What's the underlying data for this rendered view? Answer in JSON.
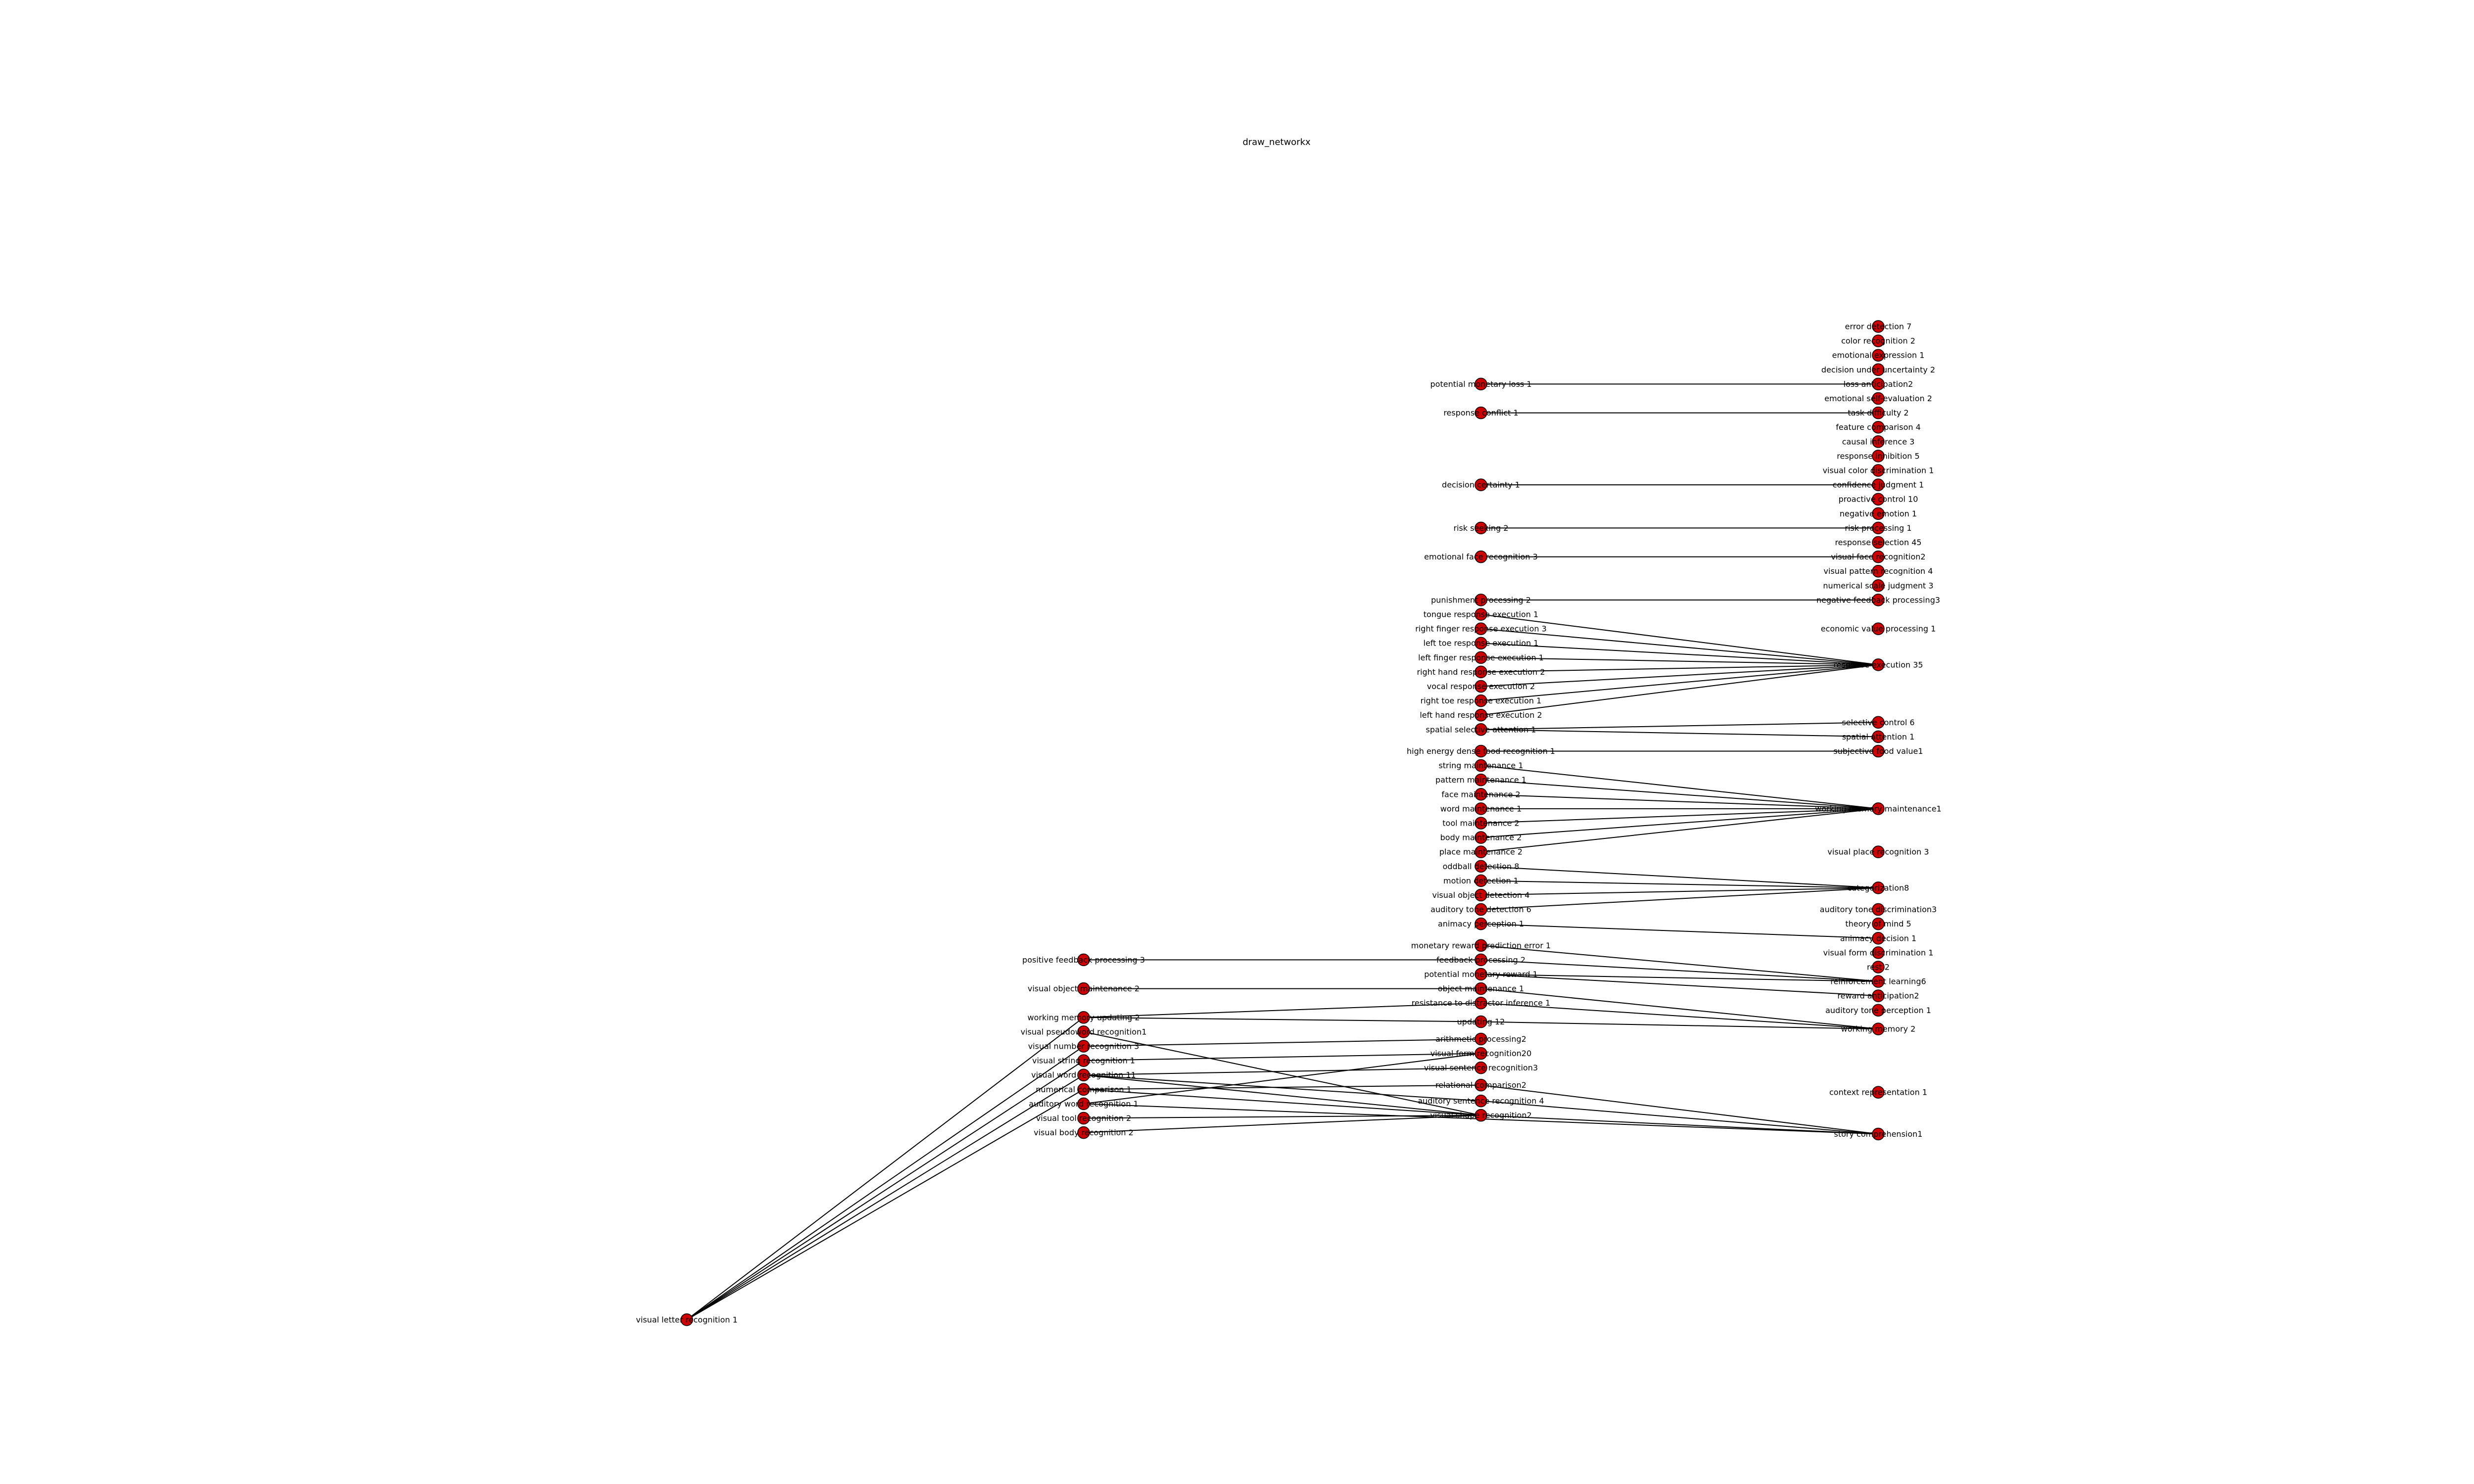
{
  "title": "draw_networkx",
  "node_color": "#cc0000",
  "edge_color": "#000000",
  "columns": [
    [
      "visual letter recognition 1"
    ],
    [
      "positive feedback processing 3",
      "visual object maintenance 2",
      "working memory updating 2",
      "visual pseudoword recognition1",
      "visual number recognition 3",
      "visual string recognition 1",
      "visual word recognition 11",
      "numerical comparison 1",
      "auditory word recognition 1",
      "visual tool recognition 2",
      "visual body recognition 2"
    ],
    [
      "potential monetary loss 1",
      "response conflict 1",
      "decision certainty 1",
      "risk seeking 2",
      "emotional face recognition 3",
      "punishment processing 2",
      "tongue response execution 1",
      "right finger response execution 3",
      "left toe response execution 1",
      "left finger response execution 1",
      "right hand response execution 2",
      "vocal response execution 2",
      "right toe response execution 1",
      "left hand response execution 2",
      "spatial selective attention 1",
      "high energy dense food recognition 1",
      "string maintenance 1",
      "pattern maintenance 1",
      "face maintenance 2",
      "word maintenance 1",
      "tool maintenance 2",
      "body maintenance 2",
      "place maintenance 2",
      "oddball detection 8",
      "motion detection 1",
      "visual object detection 4",
      "auditory tone detection 6",
      "animacy perception 1",
      "monetary reward prediction error 1",
      "feedback processing 2",
      "potential monetary reward 1",
      "object maintenance 1",
      "resistance to distractor inference 1",
      "updating 12",
      "arithmetic processing2",
      "visual form recognition20",
      "visual sentence recognition3",
      "relational comparison2",
      "auditory sentence recognition 4",
      "visual shape recognition2"
    ],
    [
      "error detection 7",
      "color recognition 2",
      "emotional expression 1",
      "decision under uncertainty 2",
      "loss anticipation2",
      "emotional self-evaluation 2",
      "task difficulty 2",
      "feature comparison 4",
      "causal inference 3",
      "response inhibition 5",
      "visual color discrimination 1",
      "confidence judgment 1",
      "proactive control 10",
      "negative emotion 1",
      "risk processing 1",
      "response selection 45",
      "visual face recognition2",
      "visual pattern recognition 4",
      "numerical scale judgment 3",
      "negative feedback processing3",
      "economic value processing 1",
      "response execution 35",
      "selective control 6",
      "spatial attention 1",
      "subjective food value1",
      "working memory maintenance1",
      "visual place recognition 3",
      "categorization8",
      "auditory tone discrimination3",
      "theory of mind 5",
      "animacy decision 1",
      "visual form discrimination 1",
      "rest 2",
      "reinforcement learning6",
      "reward anticipation2",
      "auditory tone perception 1",
      "working memory 2",
      "context representation 1",
      "story comprehension1"
    ]
  ],
  "edges": [
    [
      "visual letter recognition 1",
      "working memory updating 2"
    ],
    [
      "visual letter recognition 1",
      "visual string recognition 1"
    ],
    [
      "visual letter recognition 1",
      "visual word recognition 11"
    ],
    [
      "visual letter recognition 1",
      "visual number recognition 3"
    ],
    [
      "visual letter recognition 1",
      "numerical comparison 1"
    ],
    [
      "positive feedback processing 3",
      "feedback processing 2"
    ],
    [
      "visual object maintenance 2",
      "object maintenance 1"
    ],
    [
      "working memory updating 2",
      "updating 12"
    ],
    [
      "working memory updating 2",
      "resistance to distractor inference 1"
    ],
    [
      "visual string recognition 1",
      "visual form recognition20"
    ],
    [
      "visual number recognition 3",
      "arithmetic processing2"
    ],
    [
      "visual word recognition 11",
      "visual sentence recognition3"
    ],
    [
      "visual word recognition 11",
      "auditory sentence recognition 4"
    ],
    [
      "visual word recognition 11",
      "visual shape recognition2"
    ],
    [
      "numerical comparison 1",
      "relational comparison2"
    ],
    [
      "numerical comparison 1",
      "visual shape recognition2"
    ],
    [
      "auditory word recognition 1",
      "visual form recognition20"
    ],
    [
      "auditory word recognition 1",
      "story comprehension1"
    ],
    [
      "visual tool recognition 2",
      "visual shape recognition2"
    ],
    [
      "visual body recognition 2",
      "visual shape recognition2"
    ],
    [
      "visual pseudoword recognition1",
      "visual shape recognition2"
    ],
    [
      "potential monetary loss 1",
      "loss anticipation2"
    ],
    [
      "response conflict 1",
      "task difficulty 2"
    ],
    [
      "decision certainty 1",
      "confidence judgment 1"
    ],
    [
      "risk seeking 2",
      "risk processing 1"
    ],
    [
      "emotional face recognition 3",
      "visual face recognition2"
    ],
    [
      "punishment processing 2",
      "negative feedback processing3"
    ],
    [
      "tongue response execution 1",
      "response execution 35"
    ],
    [
      "right finger response execution 3",
      "response execution 35"
    ],
    [
      "left toe response execution 1",
      "response execution 35"
    ],
    [
      "left finger response execution 1",
      "response execution 35"
    ],
    [
      "right hand response execution 2",
      "response execution 35"
    ],
    [
      "vocal response execution 2",
      "response execution 35"
    ],
    [
      "right toe response execution 1",
      "response execution 35"
    ],
    [
      "left hand response execution 2",
      "response execution 35"
    ],
    [
      "spatial selective attention 1",
      "selective control 6"
    ],
    [
      "spatial selective attention 1",
      "spatial attention 1"
    ],
    [
      "high energy dense food recognition 1",
      "subjective food value1"
    ],
    [
      "string maintenance 1",
      "working memory maintenance1"
    ],
    [
      "pattern maintenance 1",
      "working memory maintenance1"
    ],
    [
      "face maintenance 2",
      "working memory maintenance1"
    ],
    [
      "word maintenance 1",
      "working memory maintenance1"
    ],
    [
      "tool maintenance 2",
      "working memory maintenance1"
    ],
    [
      "body maintenance 2",
      "working memory maintenance1"
    ],
    [
      "place maintenance 2",
      "working memory maintenance1"
    ],
    [
      "oddball detection 8",
      "categorization8"
    ],
    [
      "motion detection 1",
      "categorization8"
    ],
    [
      "visual object detection 4",
      "categorization8"
    ],
    [
      "auditory tone detection 6",
      "categorization8"
    ],
    [
      "animacy perception 1",
      "animacy decision 1"
    ],
    [
      "monetary reward prediction error 1",
      "reinforcement learning6"
    ],
    [
      "feedback processing 2",
      "reinforcement learning6"
    ],
    [
      "potential monetary reward 1",
      "reward anticipation2"
    ],
    [
      "potential monetary reward 1",
      "reinforcement learning6"
    ],
    [
      "object maintenance 1",
      "working memory 2"
    ],
    [
      "resistance to distractor inference 1",
      "working memory 2"
    ],
    [
      "updating 12",
      "working memory 2"
    ],
    [
      "auditory sentence recognition 4",
      "story comprehension1"
    ],
    [
      "visual shape recognition2",
      "story comprehension1"
    ],
    [
      "relational comparison2",
      "story comprehension1"
    ]
  ]
}
